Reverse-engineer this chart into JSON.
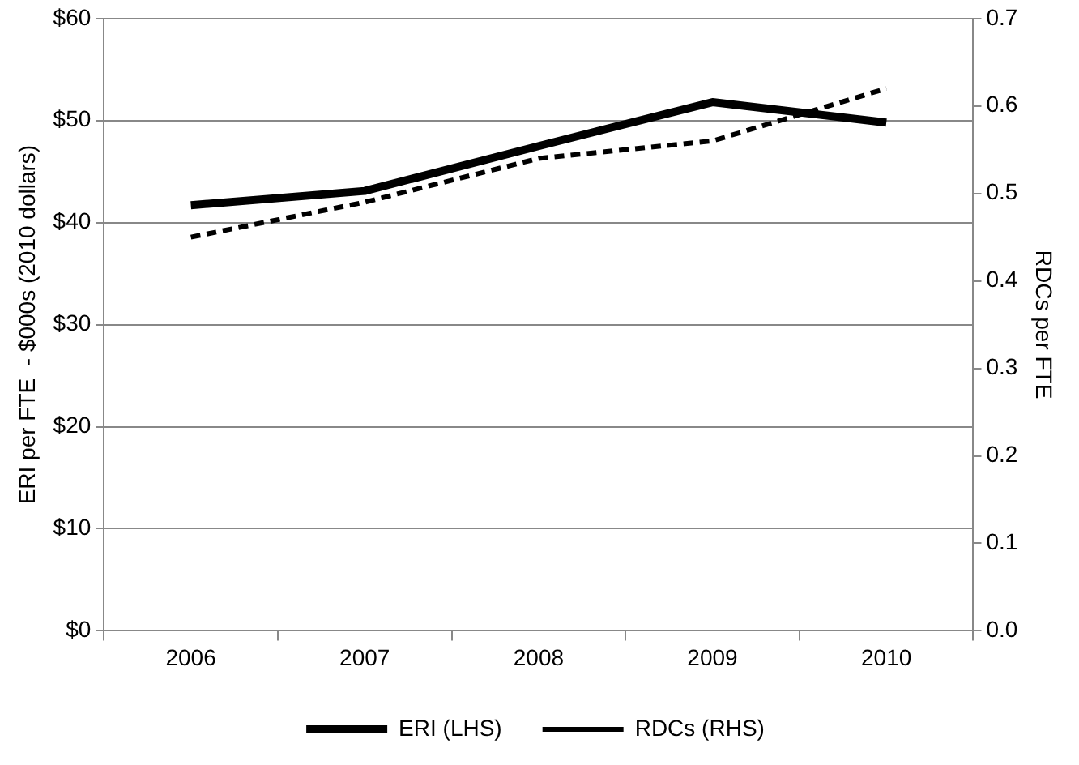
{
  "chart_data": {
    "type": "line",
    "ylabel": "ERI per FTE  - $000s (2010 dollars)",
    "y2label": "RDCs per FTE",
    "categories": [
      "2006",
      "2007",
      "2008",
      "2009",
      "2010"
    ],
    "series": [
      {
        "name": "ERI (LHS)",
        "color": "#000000",
        "values": [
          41.7,
          43.1,
          47.5,
          51.8,
          49.8
        ],
        "line_style": "solid"
      },
      {
        "name": "RDCs (RHS)",
        "color": "#000000",
        "values": [
          0.45,
          0.49,
          0.54,
          0.56,
          0.62
        ],
        "axis": "y2",
        "line_style": "dashed"
      }
    ],
    "ylim": [
      0,
      60
    ],
    "yticks": [
      {
        "value": 0,
        "label": "$0"
      },
      {
        "value": 10,
        "label": "$10"
      },
      {
        "value": 20,
        "label": "$20"
      },
      {
        "value": 30,
        "label": "$30"
      },
      {
        "value": 40,
        "label": "$40"
      },
      {
        "value": 50,
        "label": "$50"
      },
      {
        "value": 60,
        "label": "$60"
      }
    ],
    "y2lim": [
      0,
      0.7
    ],
    "y2ticks": [
      {
        "value": 0,
        "label": "0.0"
      },
      {
        "value": 0.1,
        "label": "0.1"
      },
      {
        "value": 0.2,
        "label": "0.2"
      },
      {
        "value": 0.3,
        "label": "0.3"
      },
      {
        "value": 0.4,
        "label": "0.4"
      },
      {
        "value": 0.5,
        "label": "0.5"
      },
      {
        "value": 0.6,
        "label": "0.6"
      },
      {
        "value": 0.7,
        "label": "0.7"
      }
    ],
    "grid": "y",
    "legend": "bottom",
    "marker": "none"
  }
}
